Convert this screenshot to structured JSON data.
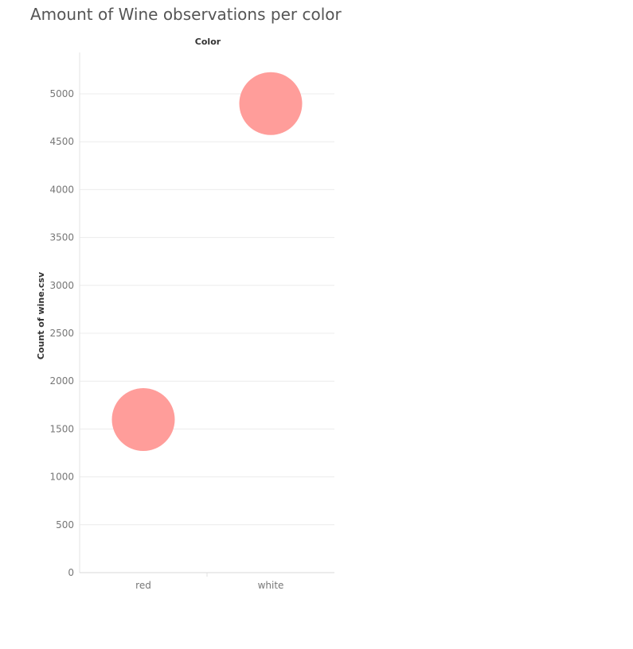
{
  "chart_data": {
    "type": "scatter",
    "title": "Amount of Wine observations per color",
    "column_header": "Color",
    "xlabel": "",
    "ylabel": "Count of wine.csv",
    "categories": [
      "red",
      "white"
    ],
    "values": [
      1599,
      4898
    ],
    "ylim": [
      0,
      5500
    ],
    "yticks": [
      0,
      500,
      1000,
      1500,
      2000,
      2500,
      3000,
      3500,
      4000,
      4500,
      5000
    ],
    "ytick_labels": [
      "0",
      "500",
      "1000",
      "1500",
      "2000",
      "2500",
      "3000",
      "3500",
      "4000",
      "4500",
      "5000"
    ],
    "grid": true,
    "mark": "circle",
    "mark_color": "#ff9d9a"
  }
}
